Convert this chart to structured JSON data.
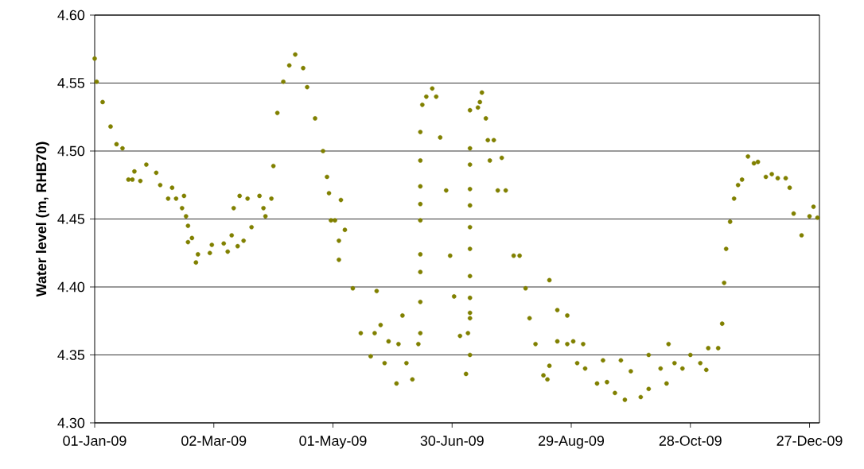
{
  "chart_data": {
    "type": "scatter",
    "ylabel": "Water level (m, RHB70)",
    "x": [
      "2009-01-01",
      "2009-01-02",
      "2009-01-05",
      "2009-01-09",
      "2009-01-12",
      "2009-01-15",
      "2009-01-18",
      "2009-01-20",
      "2009-01-21",
      "2009-01-24",
      "2009-01-27",
      "2009-02-01",
      "2009-02-03",
      "2009-02-07",
      "2009-02-09",
      "2009-02-11",
      "2009-02-14",
      "2009-02-15",
      "2009-02-16",
      "2009-02-17",
      "2009-02-17",
      "2009-02-19",
      "2009-02-21",
      "2009-02-22",
      "2009-02-28",
      "2009-03-01",
      "2009-03-07",
      "2009-03-09",
      "2009-03-11",
      "2009-03-12",
      "2009-03-14",
      "2009-03-15",
      "2009-03-17",
      "2009-03-19",
      "2009-03-21",
      "2009-03-25",
      "2009-03-27",
      "2009-03-28",
      "2009-03-31",
      "2009-04-01",
      "2009-04-03",
      "2009-04-06",
      "2009-04-09",
      "2009-04-12",
      "2009-04-16",
      "2009-04-18",
      "2009-04-22",
      "2009-04-26",
      "2009-04-28",
      "2009-04-29",
      "2009-04-30",
      "2009-05-02",
      "2009-05-04",
      "2009-05-04",
      "2009-05-05",
      "2009-05-07",
      "2009-05-11",
      "2009-05-15",
      "2009-05-20",
      "2009-05-22",
      "2009-05-23",
      "2009-05-25",
      "2009-05-27",
      "2009-05-29",
      "2009-06-02",
      "2009-06-03",
      "2009-06-05",
      "2009-06-07",
      "2009-06-10",
      "2009-06-13",
      "2009-06-14",
      "2009-06-14",
      "2009-06-14",
      "2009-06-14",
      "2009-06-14",
      "2009-06-14",
      "2009-06-14",
      "2009-06-14",
      "2009-06-14",
      "2009-06-15",
      "2009-06-17",
      "2009-06-20",
      "2009-06-22",
      "2009-06-24",
      "2009-06-27",
      "2009-06-29",
      "2009-07-01",
      "2009-07-04",
      "2009-07-07",
      "2009-07-08",
      "2009-07-09",
      "2009-07-09",
      "2009-07-09",
      "2009-07-09",
      "2009-07-09",
      "2009-07-09",
      "2009-07-09",
      "2009-07-09",
      "2009-07-09",
      "2009-07-09",
      "2009-07-09",
      "2009-07-09",
      "2009-07-13",
      "2009-07-14",
      "2009-07-15",
      "2009-07-17",
      "2009-07-18",
      "2009-07-19",
      "2009-07-21",
      "2009-07-23",
      "2009-07-25",
      "2009-07-27",
      "2009-07-31",
      "2009-08-03",
      "2009-08-06",
      "2009-08-08",
      "2009-08-11",
      "2009-08-15",
      "2009-08-17",
      "2009-08-18",
      "2009-08-18",
      "2009-08-22",
      "2009-08-22",
      "2009-08-27",
      "2009-08-27",
      "2009-08-30",
      "2009-09-01",
      "2009-09-04",
      "2009-09-05",
      "2009-09-11",
      "2009-09-14",
      "2009-09-16",
      "2009-09-20",
      "2009-09-23",
      "2009-09-25",
      "2009-09-28",
      "2009-10-03",
      "2009-10-07",
      "2009-10-07",
      "2009-10-13",
      "2009-10-16",
      "2009-10-17",
      "2009-10-20",
      "2009-10-24",
      "2009-10-28",
      "2009-11-02",
      "2009-11-05",
      "2009-11-06",
      "2009-11-11",
      "2009-11-13",
      "2009-11-14",
      "2009-11-15",
      "2009-11-17",
      "2009-11-19",
      "2009-11-21",
      "2009-11-23",
      "2009-11-26",
      "2009-11-29",
      "2009-12-01",
      "2009-12-05",
      "2009-12-08",
      "2009-12-11",
      "2009-12-15",
      "2009-12-17",
      "2009-12-19",
      "2009-12-23",
      "2009-12-27",
      "2009-12-29",
      "2009-12-31"
    ],
    "values": [
      4.568,
      4.551,
      4.536,
      4.518,
      4.505,
      4.502,
      4.479,
      4.479,
      4.485,
      4.478,
      4.49,
      4.484,
      4.475,
      4.465,
      4.473,
      4.465,
      4.458,
      4.467,
      4.452,
      4.445,
      4.433,
      4.436,
      4.418,
      4.424,
      4.425,
      4.431,
      4.432,
      4.426,
      4.438,
      4.458,
      4.43,
      4.467,
      4.434,
      4.465,
      4.444,
      4.467,
      4.458,
      4.452,
      4.465,
      4.489,
      4.528,
      4.551,
      4.563,
      4.571,
      4.561,
      4.547,
      4.524,
      4.5,
      4.481,
      4.469,
      4.449,
      4.449,
      4.434,
      4.42,
      4.464,
      4.442,
      4.399,
      4.366,
      4.349,
      4.366,
      4.397,
      4.372,
      4.344,
      4.36,
      4.329,
      4.358,
      4.379,
      4.344,
      4.332,
      4.358,
      4.366,
      4.389,
      4.411,
      4.424,
      4.449,
      4.461,
      4.474,
      4.493,
      4.514,
      4.534,
      4.54,
      4.546,
      4.54,
      4.51,
      4.471,
      4.423,
      4.393,
      4.364,
      4.336,
      4.366,
      4.35,
      4.377,
      4.381,
      4.392,
      4.408,
      4.428,
      4.444,
      4.46,
      4.472,
      4.49,
      4.502,
      4.53,
      4.532,
      4.536,
      4.543,
      4.524,
      4.508,
      4.493,
      4.508,
      4.471,
      4.495,
      4.471,
      4.423,
      4.423,
      4.399,
      4.377,
      4.358,
      4.335,
      4.332,
      4.342,
      4.405,
      4.36,
      4.383,
      4.379,
      4.358,
      4.36,
      4.344,
      4.358,
      4.34,
      4.329,
      4.346,
      4.33,
      4.322,
      4.346,
      4.317,
      4.338,
      4.319,
      4.35,
      4.325,
      4.34,
      4.329,
      4.358,
      4.344,
      4.34,
      4.35,
      4.344,
      4.339,
      4.355,
      4.355,
      4.373,
      4.403,
      4.428,
      4.448,
      4.465,
      4.475,
      4.479,
      4.496,
      4.491,
      4.492,
      4.481,
      4.483,
      4.48,
      4.48,
      4.473,
      4.454,
      4.438,
      4.452,
      4.459,
      4.451
    ],
    "color": "#808000",
    "marker": "circle",
    "grid": "y",
    "xlim": [
      "2009-01-01",
      "2010-01-01"
    ],
    "xticks": [
      {
        "value": "2009-01-01",
        "label": "01-Jan-09"
      },
      {
        "value": "2009-03-02",
        "label": "02-Mar-09"
      },
      {
        "value": "2009-05-01",
        "label": "01-May-09"
      },
      {
        "value": "2009-06-30",
        "label": "30-Jun-09"
      },
      {
        "value": "2009-08-29",
        "label": "29-Aug-09"
      },
      {
        "value": "2009-10-28",
        "label": "28-Oct-09"
      },
      {
        "value": "2009-12-27",
        "label": "27-Dec-09"
      }
    ],
    "ylim": [
      4.3,
      4.6
    ],
    "yticks": [
      {
        "value": 4.3,
        "label": "4.30"
      },
      {
        "value": 4.35,
        "label": "4.35"
      },
      {
        "value": 4.4,
        "label": "4.40"
      },
      {
        "value": 4.45,
        "label": "4.45"
      },
      {
        "value": 4.5,
        "label": "4.50"
      },
      {
        "value": 4.55,
        "label": "4.55"
      },
      {
        "value": 4.6,
        "label": "4.60"
      }
    ]
  }
}
